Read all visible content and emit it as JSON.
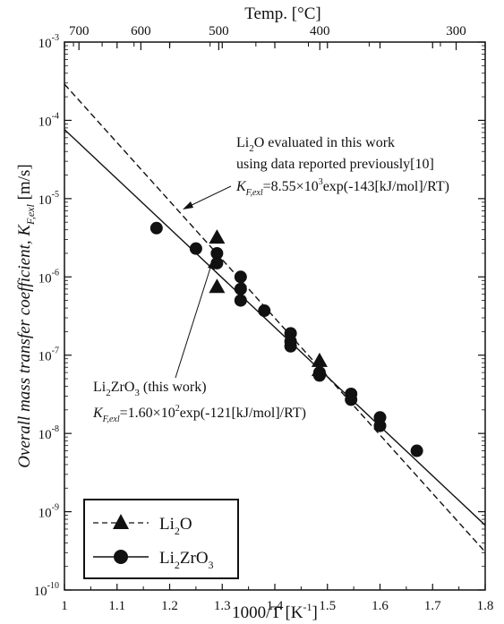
{
  "chart_data": {
    "type": "scatter",
    "xlabel": "1000/T  [K",
    "xlabel_sup": "-1",
    "xlabel_end": "]",
    "top_axis_label": "Temp.  [°C]",
    "ylabel_main": "Overall mass transfer coefficient,  K",
    "ylabel_sub": "F,exl",
    "ylabel_unit": "  [m/s]",
    "xlim": [
      1.0,
      1.8
    ],
    "ylim": [
      1e-10,
      0.001
    ],
    "y_scale": "log",
    "x_ticks": [
      "1",
      "1.1",
      "1.2",
      "1.3",
      "1.4",
      "1.5",
      "1.6",
      "1.7",
      "1.8"
    ],
    "y_tick_base": "10",
    "y_tick_exponents": [
      "-10",
      "-9",
      "-8",
      "-7",
      "-6",
      "-5",
      "-4",
      "-3"
    ],
    "top_ticks": [
      {
        "label": "700",
        "celsius": 700
      },
      {
        "label": "600",
        "celsius": 600
      },
      {
        "label": "500",
        "celsius": 500
      },
      {
        "label": "400",
        "celsius": 400
      },
      {
        "label": "300",
        "celsius": 300
      }
    ],
    "series": [
      {
        "name": "Li2O",
        "marker": "triangle",
        "line_style": "dashed",
        "fit": {
          "A": 8550,
          "Ea": 143
        },
        "points": [
          {
            "x": 1.29,
            "y": 3.2e-06
          },
          {
            "x": 1.29,
            "y": 7.5e-07
          },
          {
            "x": 1.485,
            "y": 8.5e-08
          },
          {
            "x": 1.485,
            "y": 6.5e-08
          }
        ]
      },
      {
        "name": "Li2ZrO3",
        "marker": "circle",
        "line_style": "solid",
        "fit": {
          "A": 160,
          "Ea": 121
        },
        "points": [
          {
            "x": 1.175,
            "y": 4.2e-06
          },
          {
            "x": 1.25,
            "y": 2.3e-06
          },
          {
            "x": 1.29,
            "y": 2e-06
          },
          {
            "x": 1.29,
            "y": 1.5e-06
          },
          {
            "x": 1.335,
            "y": 1e-06
          },
          {
            "x": 1.335,
            "y": 7e-07
          },
          {
            "x": 1.335,
            "y": 5e-07
          },
          {
            "x": 1.38,
            "y": 3.7e-07
          },
          {
            "x": 1.43,
            "y": 1.9e-07
          },
          {
            "x": 1.43,
            "y": 1.5e-07
          },
          {
            "x": 1.43,
            "y": 1.3e-07
          },
          {
            "x": 1.485,
            "y": 6e-08
          },
          {
            "x": 1.485,
            "y": 5.5e-08
          },
          {
            "x": 1.545,
            "y": 3.2e-08
          },
          {
            "x": 1.545,
            "y": 2.7e-08
          },
          {
            "x": 1.6,
            "y": 1.6e-08
          },
          {
            "x": 1.6,
            "y": 1.25e-08
          },
          {
            "x": 1.67,
            "y": 6e-09
          }
        ]
      }
    ],
    "annotations": {
      "li2o": {
        "line1_a": "Li",
        "line1_sub": "2",
        "line1_b": "O evaluated in this work",
        "line2": "using data reported previously[10]",
        "eq_k": "K",
        "eq_sub": "F,exl",
        "eq_a": "=8.55×10",
        "eq_sup": "3",
        "eq_b": "exp(-143[kJ/mol]/RT)"
      },
      "li2zro3": {
        "line1_a": "Li",
        "line1_sub1": "2",
        "line1_b": "ZrO",
        "line1_sub2": "3",
        "line1_c": " (this work)",
        "eq_k": "K",
        "eq_sub": "F,exl",
        "eq_a": "=1.60×10",
        "eq_sup": "2",
        "eq_b": "exp(-121[kJ/mol]/RT)"
      }
    },
    "legend": {
      "position": "bottom-left",
      "li2o_a": "Li",
      "li2o_sub": "2",
      "li2o_b": "O",
      "li2zro3_a": "Li",
      "li2zro3_sub1": "2",
      "li2zro3_b": "ZrO",
      "li2zro3_sub2": "3"
    },
    "grid": false
  }
}
